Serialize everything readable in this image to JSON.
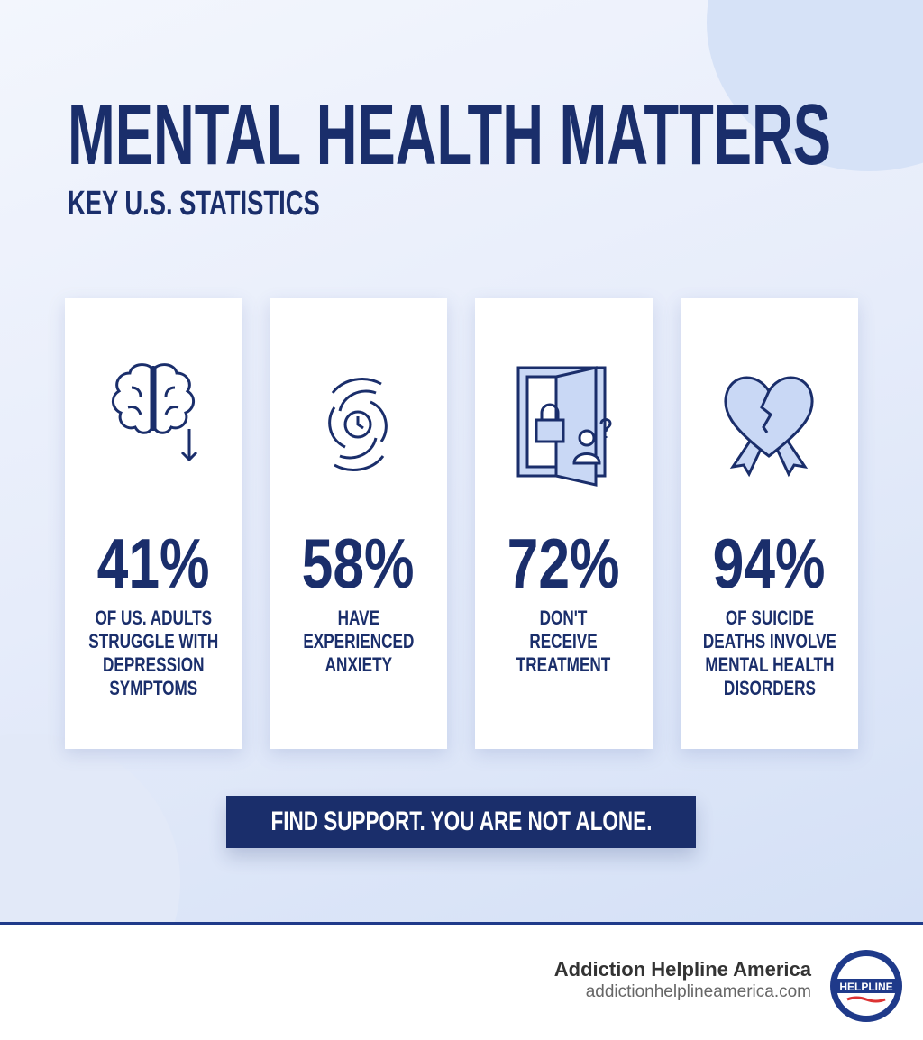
{
  "header": {
    "title": "MENTAL HEALTH MATTERS",
    "subtitle": "KEY U.S. STATISTICS"
  },
  "colors": {
    "navy": "#1a2e6b",
    "accent_light": "#c9d8f5"
  },
  "cards": [
    {
      "icon": "brain-down-arrow-icon",
      "value": "41%",
      "label": "OF US. ADULTS\nSTRUGGLE WITH\nDEPRESSION\nSYMPTOMS"
    },
    {
      "icon": "anxiety-swirl-icon",
      "value": "58%",
      "label": "HAVE\nEXPERIENCED\nANXIETY"
    },
    {
      "icon": "locked-door-person-icon",
      "value": "72%",
      "label": "DON'T\nRECEIVE\nTREATMENT"
    },
    {
      "icon": "broken-heart-ribbon-icon",
      "value": "94%",
      "label": "OF SUICIDE\nDEATHS INVOLVE\nMENTAL HEALTH\nDISORDERS"
    }
  ],
  "cta": {
    "label": "FIND SUPPORT. YOU ARE NOT ALONE."
  },
  "footer": {
    "brand": "Addiction Helpline America",
    "url": "addictionhelplineamerica.com",
    "logo_text": "ADDICTION HELPLINE AMERICA"
  }
}
